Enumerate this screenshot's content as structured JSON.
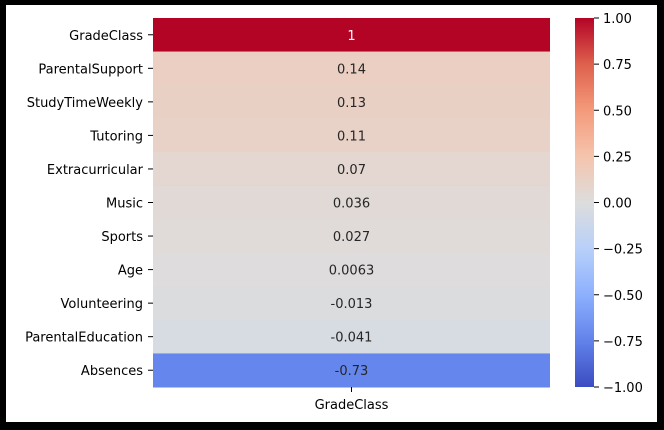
{
  "chart_data": {
    "type": "heatmap",
    "title": "",
    "xlabel": "",
    "ylabel": "",
    "columns": [
      "GradeClass"
    ],
    "rows": [
      {
        "label": "GradeClass",
        "value": 1,
        "text": "1"
      },
      {
        "label": "ParentalSupport",
        "value": 0.14,
        "text": "0.14"
      },
      {
        "label": "StudyTimeWeekly",
        "value": 0.13,
        "text": "0.13"
      },
      {
        "label": "Tutoring",
        "value": 0.11,
        "text": "0.11"
      },
      {
        "label": "Extracurricular",
        "value": 0.07,
        "text": "0.07"
      },
      {
        "label": "Music",
        "value": 0.036,
        "text": "0.036"
      },
      {
        "label": "Sports",
        "value": 0.027,
        "text": "0.027"
      },
      {
        "label": "Age",
        "value": 0.0063,
        "text": "0.0063"
      },
      {
        "label": "Volunteering",
        "value": -0.013,
        "text": "-0.013"
      },
      {
        "label": "ParentalEducation",
        "value": -0.041,
        "text": "-0.041"
      },
      {
        "label": "Absences",
        "value": -0.73,
        "text": "-0.73"
      }
    ],
    "colorbar": {
      "colormap": "coolwarm",
      "range": [
        -1,
        1
      ],
      "ticks": [
        1.0,
        0.75,
        0.5,
        0.25,
        0.0,
        -0.25,
        -0.5,
        -0.75,
        -1.0
      ],
      "tick_labels": [
        "1.00",
        "0.75",
        "0.50",
        "0.25",
        "0.00",
        "−0.25",
        "−0.50",
        "−0.75",
        "−1.00"
      ]
    },
    "annotation_colors": {
      "dark_cell": "#ffffff",
      "light_cell": "#262626"
    }
  }
}
